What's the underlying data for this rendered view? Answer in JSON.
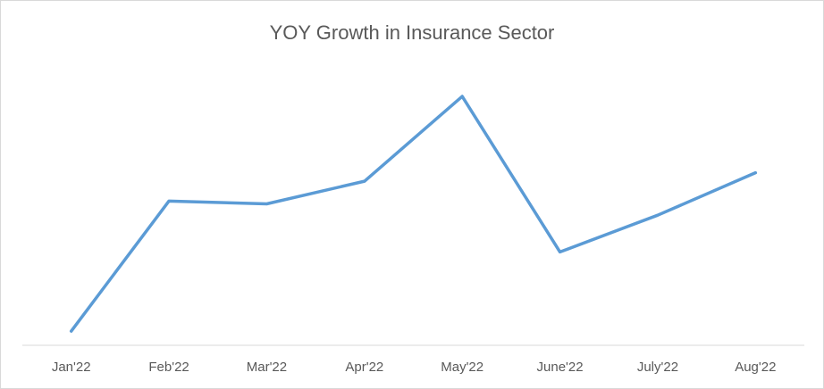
{
  "chart_data": {
    "type": "line",
    "title": "YOY Growth in Insurance Sector",
    "categories": [
      "Jan'22",
      "Feb'22",
      "Mar'22",
      "Apr'22",
      "May'22",
      "June'22",
      "July'22",
      "Aug'22"
    ],
    "values": [
      5,
      51,
      50,
      58,
      88,
      33,
      46,
      61
    ],
    "color": "#5b9bd5",
    "ylim": [
      0,
      100
    ],
    "grid": false
  }
}
